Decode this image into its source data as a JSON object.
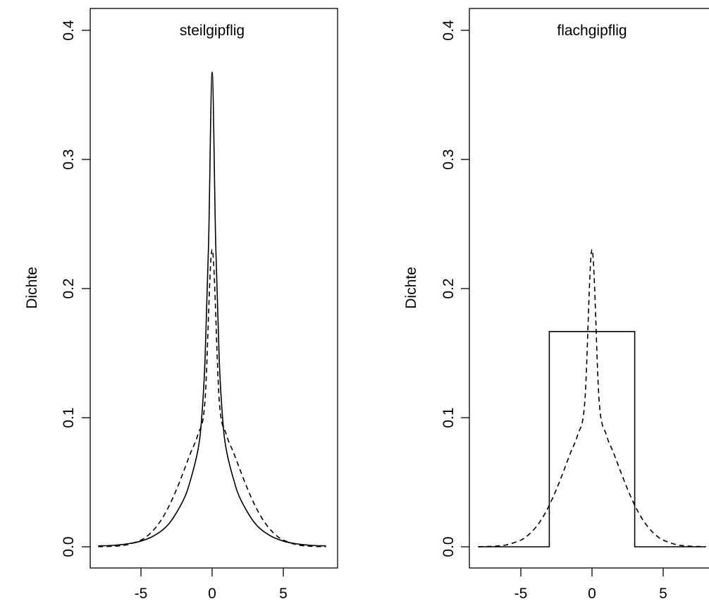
{
  "chart_data": [
    {
      "type": "line",
      "title": "steilgipflig",
      "xlabel": "",
      "ylabel": "Dichte",
      "xlim": [
        -8,
        8
      ],
      "ylim": [
        0,
        0.4
      ],
      "xticks": [
        "-5",
        "0",
        "5"
      ],
      "yticks": [
        "0.0",
        "0.1",
        "0.2",
        "0.3",
        "0.4"
      ],
      "grid": false,
      "series": [
        {
          "style": "solid",
          "x": [
            -8,
            -7,
            -6,
            -5,
            -4,
            -3,
            -2,
            -1.5,
            -1,
            -0.75,
            -0.5,
            -0.25,
            0,
            0.25,
            0.5,
            0.75,
            1,
            1.5,
            2,
            3,
            4,
            5,
            6,
            7,
            8
          ],
          "y": [
            0.0007,
            0.0011,
            0.0022,
            0.0044,
            0.0091,
            0.0183,
            0.0367,
            0.0525,
            0.0749,
            0.0976,
            0.1443,
            0.2345,
            0.3676,
            0.2345,
            0.1443,
            0.0976,
            0.0749,
            0.0525,
            0.0367,
            0.0183,
            0.0091,
            0.0044,
            0.0022,
            0.0011,
            0.0007
          ]
        },
        {
          "style": "dashed",
          "x": [
            -8,
            -7,
            -6,
            -5,
            -4.5,
            -4,
            -3.5,
            -3,
            -2.5,
            -2,
            -1.5,
            -1,
            -0.5,
            0,
            0.5,
            1,
            1.5,
            2,
            2.5,
            3,
            3.5,
            4,
            4.5,
            5,
            6,
            7,
            8
          ],
          "y": [
            0.0001,
            0.0004,
            0.0015,
            0.0052,
            0.0089,
            0.0144,
            0.0221,
            0.0322,
            0.0445,
            0.0585,
            0.0731,
            0.0869,
            0.1131,
            0.2303,
            0.1131,
            0.0869,
            0.0731,
            0.0585,
            0.0445,
            0.0322,
            0.0221,
            0.0144,
            0.0089,
            0.0052,
            0.0015,
            0.0004,
            0.0001
          ]
        }
      ]
    },
    {
      "type": "line",
      "title": "flachgipflig",
      "xlabel": "",
      "ylabel": "Dichte",
      "xlim": [
        -8,
        8
      ],
      "ylim": [
        0,
        0.4
      ],
      "xticks": [
        "-5",
        "0",
        "5"
      ],
      "yticks": [
        "0.0",
        "0.1",
        "0.2",
        "0.3",
        "0.4"
      ],
      "grid": false,
      "series": [
        {
          "style": "solid",
          "x": [
            -8,
            -3,
            -3,
            3,
            3,
            8
          ],
          "y": [
            0,
            0,
            0.1667,
            0.1667,
            0,
            0
          ]
        },
        {
          "style": "dashed",
          "x": [
            -8,
            -7,
            -6,
            -5,
            -4.5,
            -4,
            -3.5,
            -3,
            -2.5,
            -2,
            -1.5,
            -1,
            -0.5,
            0,
            0.5,
            1,
            1.5,
            2,
            2.5,
            3,
            3.5,
            4,
            4.5,
            5,
            6,
            7,
            8
          ],
          "y": [
            0.0001,
            0.0004,
            0.0015,
            0.0052,
            0.0089,
            0.0144,
            0.0221,
            0.0322,
            0.0445,
            0.0585,
            0.0731,
            0.0869,
            0.1131,
            0.2303,
            0.1131,
            0.0869,
            0.0731,
            0.0585,
            0.0445,
            0.0322,
            0.0221,
            0.0144,
            0.0089,
            0.0052,
            0.0015,
            0.0004,
            0.0001
          ]
        }
      ]
    }
  ]
}
